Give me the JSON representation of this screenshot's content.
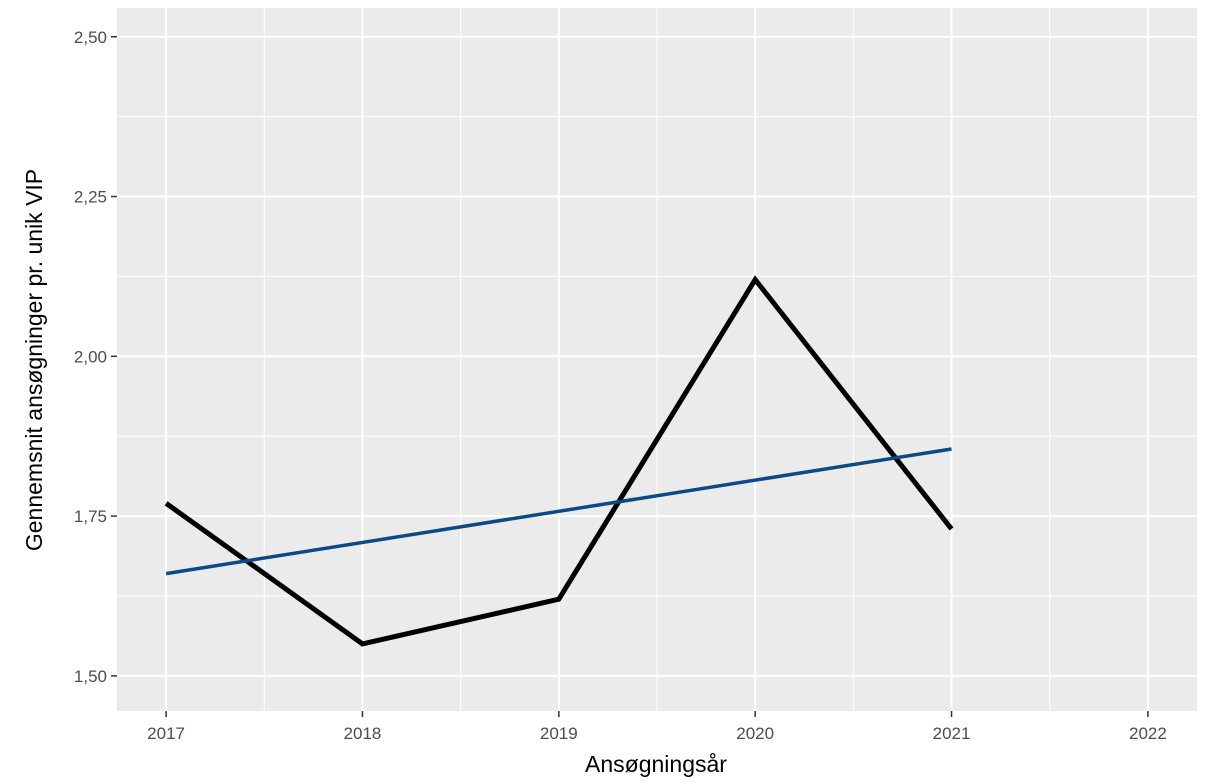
{
  "chart_data": {
    "type": "line",
    "title": "",
    "xlabel": "Ansøgningsår",
    "ylabel": "Gennemsnit ansøgninger pr. unik VIP",
    "x_ticks": [
      "2017",
      "2018",
      "2019",
      "2020",
      "2021",
      "2022"
    ],
    "y_ticks": [
      "1,50",
      "1,75",
      "2,00",
      "2,25",
      "2,50"
    ],
    "y_tick_values": [
      1.5,
      1.75,
      2.0,
      2.25,
      2.5
    ],
    "xlim": [
      2016.75,
      2022.25
    ],
    "ylim": [
      1.445,
      2.545
    ],
    "grid": true,
    "series": [
      {
        "color": "#000000",
        "x": [
          2017,
          2018,
          2019,
          2020,
          2021
        ],
        "y": [
          1.77,
          1.55,
          1.62,
          2.12,
          1.73
        ]
      },
      {
        "color": "#0b4a82",
        "x": [
          2017,
          2021
        ],
        "y": [
          1.66,
          1.855
        ]
      }
    ],
    "panel_background": "#ebebeb",
    "gridline_color": "#ffffff"
  }
}
